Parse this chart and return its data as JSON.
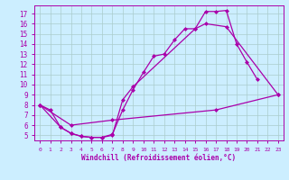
{
  "xlabel": "Windchill (Refroidissement éolien,°C)",
  "bg_color": "#cceeff",
  "line_color": "#aa00aa",
  "grid_color": "#aacccc",
  "xlim": [
    -0.5,
    23.5
  ],
  "ylim": [
    4.5,
    17.8
  ],
  "xticks": [
    0,
    1,
    2,
    3,
    4,
    5,
    6,
    7,
    8,
    9,
    10,
    11,
    12,
    13,
    14,
    15,
    16,
    17,
    18,
    19,
    20,
    21,
    22,
    23
  ],
  "yticks": [
    5,
    6,
    7,
    8,
    9,
    10,
    11,
    12,
    13,
    14,
    15,
    16,
    17
  ],
  "series": [
    {
      "x": [
        0,
        1,
        2,
        3,
        4,
        5,
        6,
        7,
        8,
        9,
        10,
        11,
        12,
        13,
        14,
        15,
        16,
        17,
        18,
        19,
        20,
        21
      ],
      "y": [
        8.0,
        7.5,
        5.8,
        5.2,
        4.9,
        4.8,
        4.8,
        5.1,
        7.5,
        9.5,
        11.2,
        12.8,
        13.0,
        14.4,
        15.5,
        15.5,
        17.2,
        17.2,
        17.3,
        14.0,
        12.2,
        10.5
      ]
    },
    {
      "x": [
        0,
        2,
        3,
        4,
        5,
        6,
        7,
        8,
        9,
        15,
        16,
        18,
        23
      ],
      "y": [
        8.0,
        5.8,
        5.2,
        4.9,
        4.8,
        4.8,
        5.0,
        8.5,
        9.8,
        15.5,
        16.0,
        15.7,
        9.0
      ]
    },
    {
      "x": [
        0,
        3,
        7,
        17,
        23
      ],
      "y": [
        8.0,
        6.0,
        6.5,
        7.5,
        9.0
      ]
    }
  ]
}
